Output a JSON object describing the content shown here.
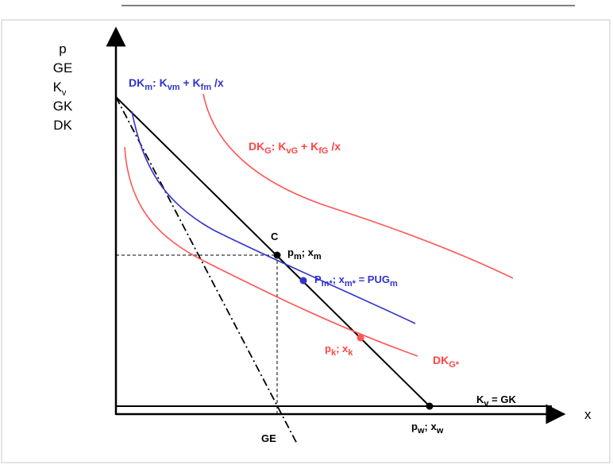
{
  "axes": {
    "y_labels": [
      "p",
      "GE",
      "K",
      "GK",
      "DK"
    ],
    "y_label_kv_sub": "v",
    "x_label": "x"
  },
  "curves": {
    "dk_m": {
      "main": "DK",
      "main_sub": "m",
      "mid": ": K",
      "mid_sub": "vm",
      "plus": " + K",
      "plus_sub": "fm",
      "tail": " /x",
      "color": "#3333cc"
    },
    "dk_g": {
      "main": "DK",
      "main_sub": "G",
      "mid": ": K",
      "mid_sub": "vG",
      "plus": " + K",
      "plus_sub": "fG",
      "tail": " /x",
      "color": "#ff5555"
    },
    "dk_gstar": {
      "main": "DK",
      "main_sub": "G*",
      "color": "#ff5555"
    }
  },
  "points": {
    "c": {
      "label": "C"
    },
    "pm_xm": {
      "p": "p",
      "p_sub": "m",
      "sep": "; x",
      "x_sub": "m"
    },
    "pmstar": {
      "p": "P",
      "p_sub": "m*",
      "sep": "; x",
      "x_sub": "m*",
      "eq": " = PUG",
      "eq_sub": "m",
      "color": "#3333cc"
    },
    "pk_xk": {
      "p": "p",
      "p_sub": "k",
      "sep": "; x",
      "x_sub": "k",
      "color": "#ff5555"
    },
    "pw_xw": {
      "p": "p",
      "p_sub": "w",
      "sep": "; x",
      "x_sub": "w"
    }
  },
  "lines": {
    "kv_gk": {
      "a": "K",
      "a_sub": "v",
      "b": " = GK"
    },
    "ge": {
      "label": "GE"
    }
  }
}
